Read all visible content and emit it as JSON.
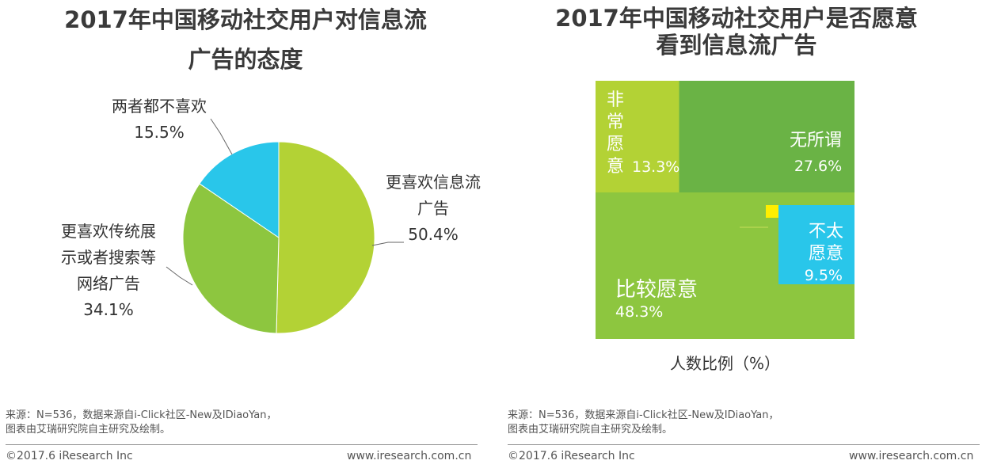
{
  "left_title": [
    "2017年中国移动社交用户对信息流",
    "广告的态度"
  ],
  "right_title": [
    "2017年中国移动社交用户是否愿意",
    "看到信息流广告"
  ],
  "colors": {
    "lime": "#b3d235",
    "green": "#8dc63f",
    "cyan": "#29c6ea",
    "darkgreen": "#6ab345",
    "yellow": "#ffee00"
  },
  "chart_data": [
    {
      "type": "pie",
      "title": "2017年中国移动社交用户对信息流广告的态度",
      "slices": [
        {
          "label": [
            "更喜欢信息流",
            "广告"
          ],
          "value": 50.4,
          "display": "50.4%",
          "color": "#b3d235"
        },
        {
          "label": [
            "更喜欢传统展",
            "示或者搜索等",
            "网络广告"
          ],
          "value": 34.1,
          "display": "34.1%",
          "color": "#8dc63f"
        },
        {
          "label": [
            "两者都不喜欢"
          ],
          "value": 15.5,
          "display": "15.5%",
          "color": "#29c6ea"
        }
      ]
    },
    {
      "type": "treemap",
      "title": "2017年中国移动社交用户是否愿意看到信息流广告",
      "xlabel": "人数比例（%）",
      "cells": [
        {
          "label": "比较愿意",
          "value": 48.3,
          "display": "48.3%",
          "color": "#8dc63f"
        },
        {
          "label": "无所谓",
          "value": 27.6,
          "display": "27.6%",
          "color": "#6ab345"
        },
        {
          "label": "非常愿意",
          "value": 13.3,
          "display": "13.3%",
          "color": "#b3d235"
        },
        {
          "label": "不太愿意",
          "value": 9.5,
          "display": "9.5%",
          "color": "#29c6ea"
        },
        {
          "label": "",
          "value": 1.3,
          "display": "",
          "color": "#ffee00"
        }
      ]
    }
  ],
  "source_lines": [
    "来源：N=536，数据来源自i-Click社区-New及IDiaoYan，",
    "图表由艾瑞研究院自主研究及绘制。"
  ],
  "copyright": "©2017.6 iResearch Inc",
  "website": "www.iresearch.com.cn"
}
